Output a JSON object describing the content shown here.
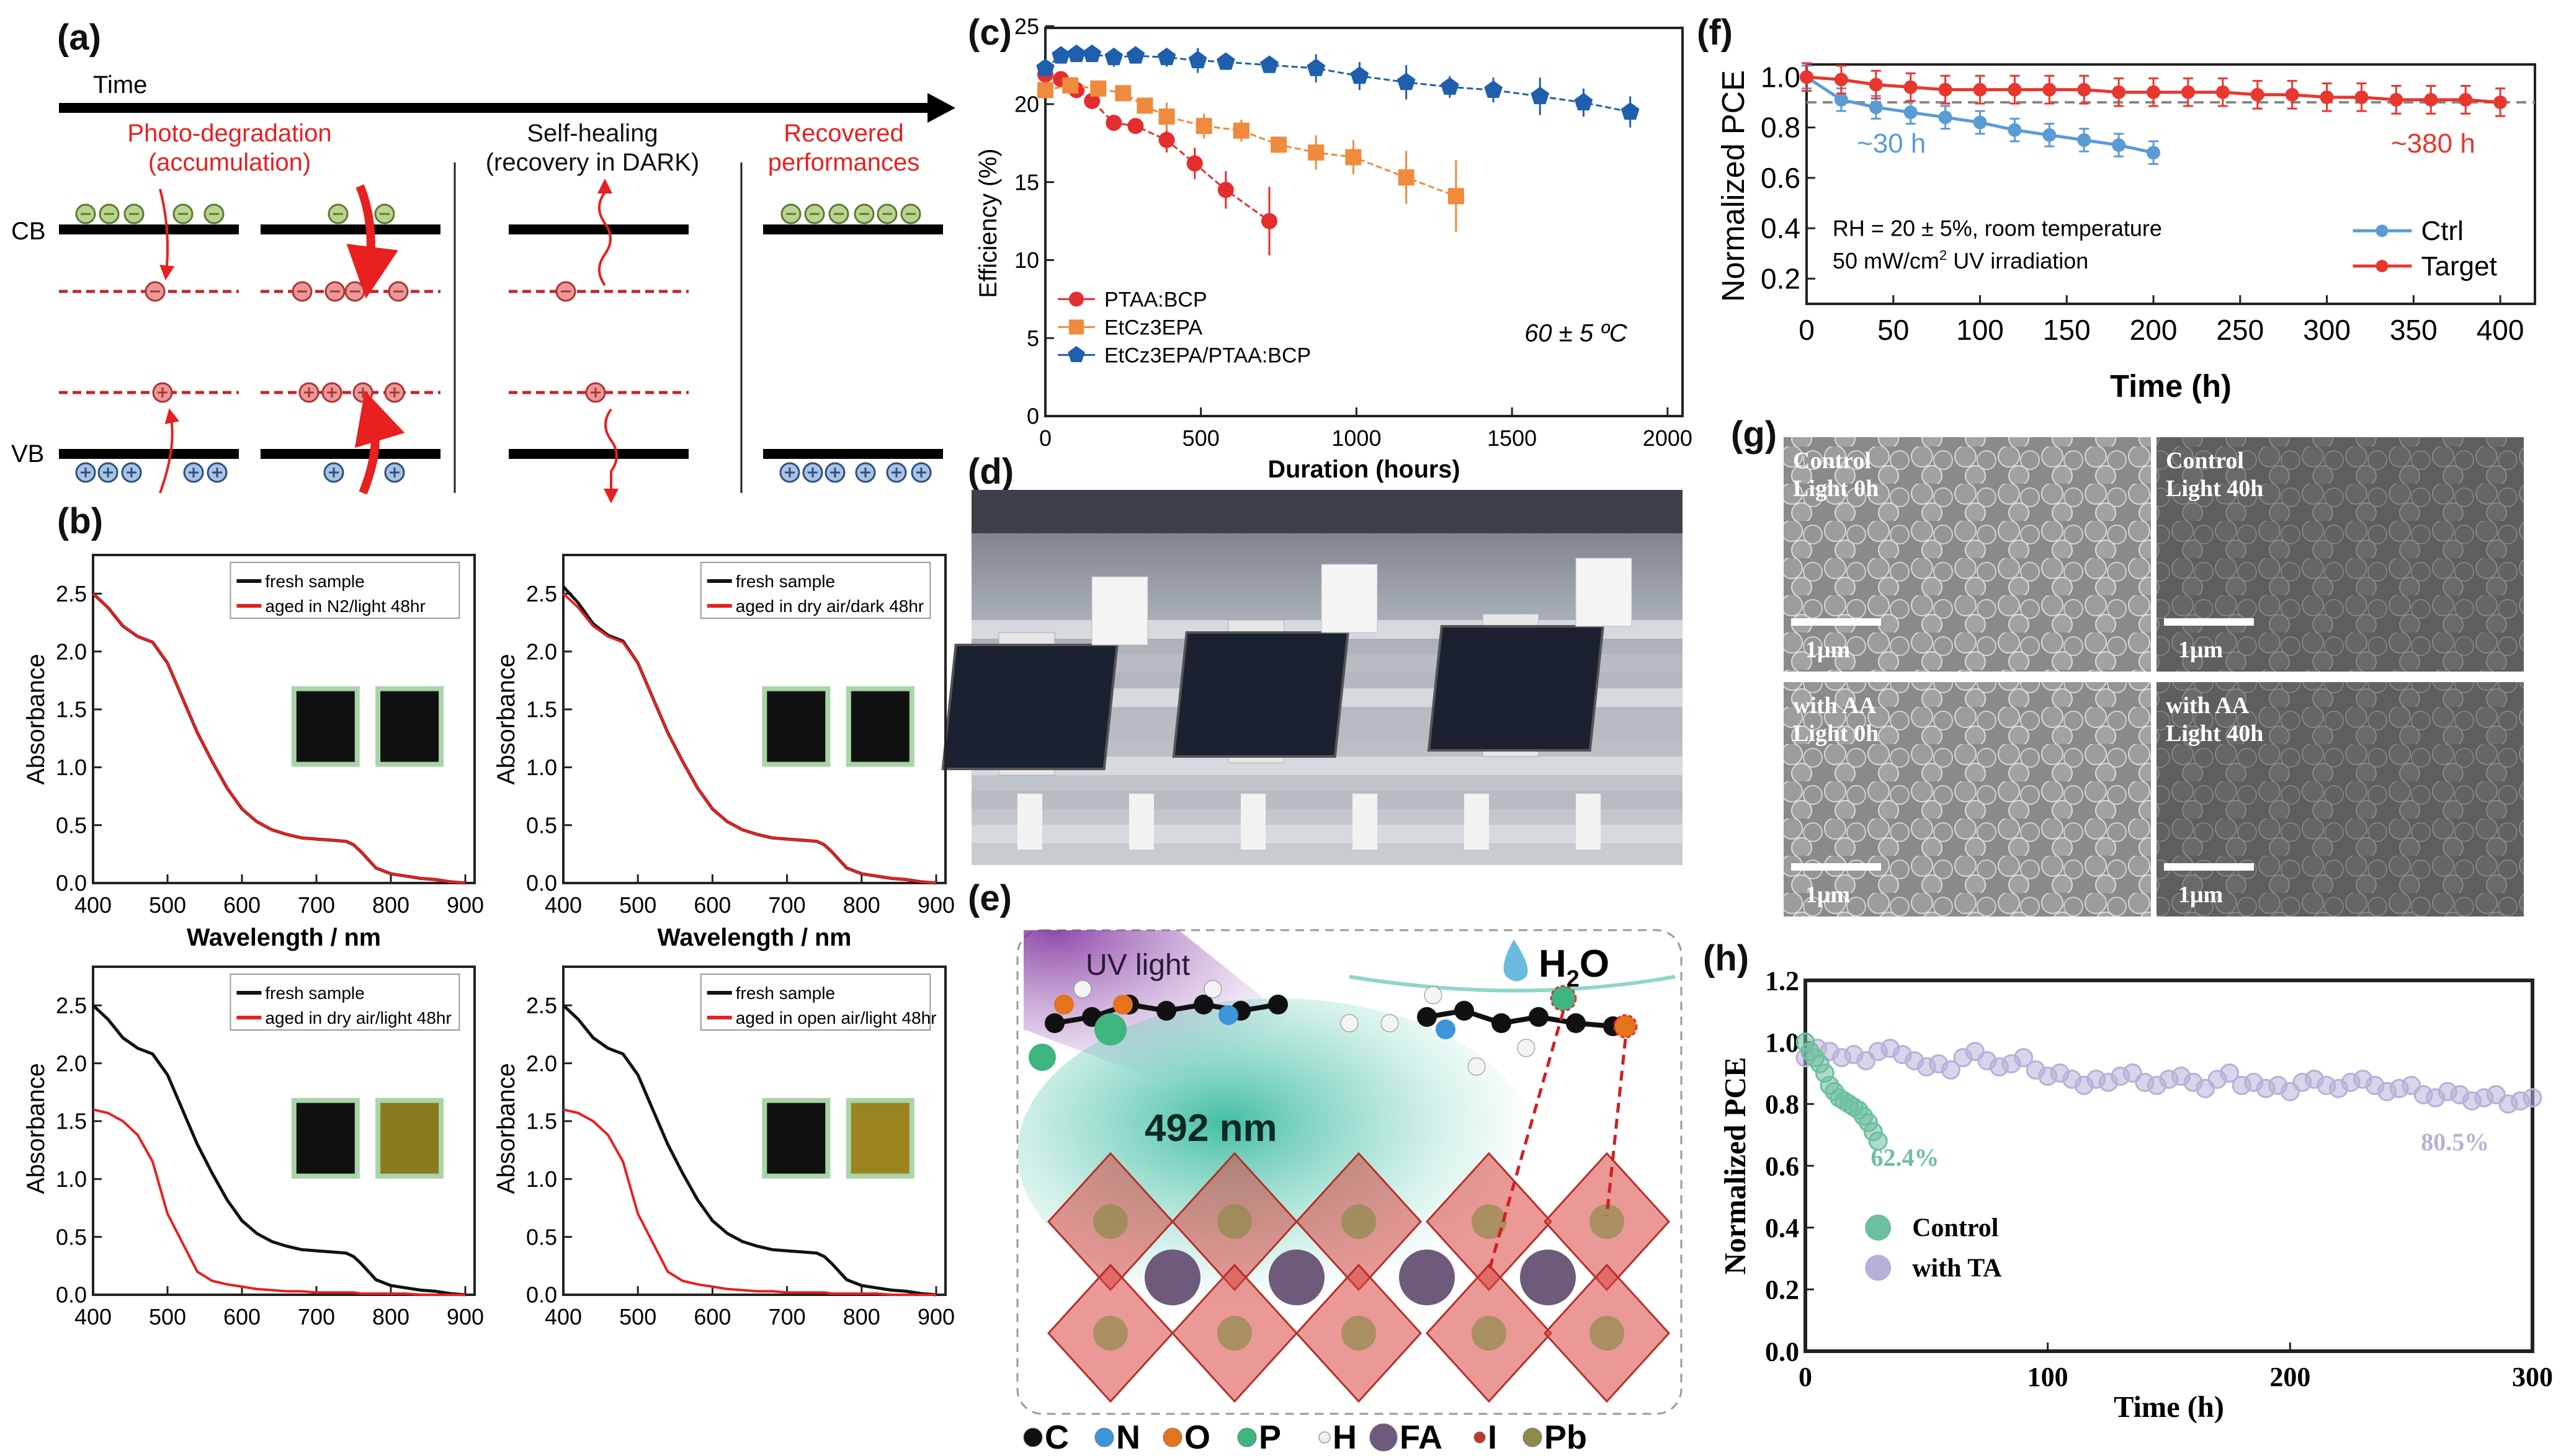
{
  "panel_labels": {
    "a": "(a)",
    "b": "(b)",
    "c": "(c)",
    "d": "(d)",
    "e": "(e)",
    "f": "(f)",
    "g": "(g)",
    "h": "(h)"
  },
  "panel_a": {
    "time_label": "Time",
    "photo_degradation": "Photo-degradation",
    "accumulation": "(accumulation)",
    "self_healing": "Self-healing",
    "recovery": "(recovery in DARK)",
    "recovered": "Recovered",
    "performances": "performances",
    "cb": "CB",
    "vb": "VB",
    "colors": {
      "red": "#e8201f",
      "electron": "#b7d58f",
      "hole": "#a9c3e3",
      "trap": "#e79a9a"
    }
  },
  "panel_e": {
    "uv_light": "UV light",
    "h2o_main": "H",
    "h2o_sub": "2",
    "h2o_end": "O",
    "wavelength": "492 nm",
    "legend": [
      {
        "label": "C",
        "color": "#111111"
      },
      {
        "label": "N",
        "color": "#3b95d8"
      },
      {
        "label": "O",
        "color": "#e5731c"
      },
      {
        "label": "P",
        "color": "#3fb57f"
      },
      {
        "label": "H",
        "color": "#eeeeee"
      },
      {
        "label": "FA",
        "color": "#6e5a7a"
      },
      {
        "label": "I",
        "color": "#c2362f"
      },
      {
        "label": "Pb",
        "color": "#8d8a4a"
      }
    ]
  },
  "panel_g": {
    "images": [
      {
        "line1": "Control",
        "line2": "Light 0h",
        "scale": "1μm"
      },
      {
        "line1": "Control",
        "line2": "Light 40h",
        "scale": "1μm"
      },
      {
        "line1": "with AA",
        "line2": "Light 0h",
        "scale": "1μm"
      },
      {
        "line1": "with AA",
        "line2": "Light 40h",
        "scale": "1μm"
      }
    ]
  },
  "chart_data": [
    {
      "id": "b1",
      "panel": "b",
      "type": "line",
      "title": "",
      "xlabel": "Wavelength / nm",
      "ylabel": "Absorbance",
      "xlim": [
        400,
        900
      ],
      "ylim": [
        0,
        2.7
      ],
      "xticks": [
        "400",
        "500",
        "600",
        "700",
        "800",
        "900"
      ],
      "yticks": [
        "0.0",
        "0.5",
        "1.0",
        "1.5",
        "2.0",
        "2.5"
      ],
      "legend_position": "top-right",
      "x": [
        400,
        420,
        440,
        460,
        480,
        500,
        520,
        540,
        560,
        580,
        600,
        620,
        640,
        660,
        680,
        700,
        720,
        740,
        750,
        760,
        770,
        780,
        800,
        820,
        840,
        860,
        880,
        900
      ],
      "series": [
        {
          "name": "fresh sample",
          "color": "#111111",
          "y": [
            2.5,
            2.38,
            2.22,
            2.13,
            2.08,
            1.9,
            1.6,
            1.3,
            1.05,
            0.82,
            0.64,
            0.53,
            0.46,
            0.42,
            0.39,
            0.38,
            0.37,
            0.36,
            0.33,
            0.27,
            0.2,
            0.13,
            0.08,
            0.06,
            0.04,
            0.03,
            0.01,
            0.0
          ]
        },
        {
          "name": "aged in N2/light 48hr",
          "color": "#e8201f",
          "y": [
            2.5,
            2.38,
            2.22,
            2.13,
            2.08,
            1.9,
            1.6,
            1.3,
            1.05,
            0.82,
            0.64,
            0.53,
            0.46,
            0.42,
            0.39,
            0.38,
            0.37,
            0.36,
            0.33,
            0.27,
            0.2,
            0.13,
            0.08,
            0.06,
            0.04,
            0.03,
            0.01,
            0.0
          ]
        }
      ],
      "inset_colors": [
        "#111111",
        "#111111"
      ]
    },
    {
      "id": "b2",
      "panel": "b",
      "type": "line",
      "title": "",
      "xlabel": "Wavelength / nm",
      "ylabel": "Absorbance",
      "xlim": [
        400,
        900
      ],
      "ylim": [
        0,
        2.7
      ],
      "xticks": [
        "400",
        "500",
        "600",
        "700",
        "800",
        "900"
      ],
      "yticks": [
        "0.0",
        "0.5",
        "1.0",
        "1.5",
        "2.0",
        "2.5"
      ],
      "legend_position": "top-right",
      "x": [
        400,
        420,
        440,
        460,
        480,
        500,
        520,
        540,
        560,
        580,
        600,
        620,
        640,
        660,
        680,
        700,
        720,
        740,
        750,
        760,
        770,
        780,
        800,
        820,
        840,
        860,
        880,
        900
      ],
      "series": [
        {
          "name": "fresh sample",
          "color": "#111111",
          "y": [
            2.56,
            2.42,
            2.24,
            2.14,
            2.09,
            1.9,
            1.6,
            1.3,
            1.05,
            0.82,
            0.64,
            0.53,
            0.46,
            0.42,
            0.39,
            0.38,
            0.37,
            0.36,
            0.33,
            0.27,
            0.2,
            0.13,
            0.08,
            0.06,
            0.04,
            0.03,
            0.01,
            0.0
          ]
        },
        {
          "name": "aged in dry air/dark 48hr",
          "color": "#e8201f",
          "y": [
            2.5,
            2.38,
            2.22,
            2.13,
            2.08,
            1.9,
            1.6,
            1.3,
            1.05,
            0.82,
            0.64,
            0.53,
            0.46,
            0.42,
            0.39,
            0.38,
            0.37,
            0.36,
            0.33,
            0.27,
            0.2,
            0.13,
            0.08,
            0.06,
            0.04,
            0.03,
            0.01,
            0.0
          ]
        }
      ],
      "inset_colors": [
        "#111111",
        "#111111"
      ]
    },
    {
      "id": "b3",
      "panel": "b",
      "type": "line",
      "title": "",
      "xlabel": "",
      "ylabel": "Absorbance",
      "xlim": [
        400,
        900
      ],
      "ylim": [
        0,
        2.7
      ],
      "xticks": [
        "400",
        "500",
        "600",
        "700",
        "800",
        "900"
      ],
      "yticks": [
        "0.0",
        "0.5",
        "1.0",
        "1.5",
        "2.0",
        "2.5"
      ],
      "legend_position": "top-right",
      "x": [
        400,
        420,
        440,
        460,
        480,
        500,
        520,
        540,
        560,
        580,
        600,
        620,
        640,
        660,
        680,
        700,
        720,
        740,
        750,
        760,
        770,
        780,
        800,
        820,
        840,
        860,
        880,
        900
      ],
      "series": [
        {
          "name": "fresh sample",
          "color": "#111111",
          "y": [
            2.5,
            2.38,
            2.22,
            2.13,
            2.08,
            1.9,
            1.6,
            1.3,
            1.05,
            0.82,
            0.64,
            0.53,
            0.46,
            0.42,
            0.39,
            0.38,
            0.37,
            0.36,
            0.33,
            0.27,
            0.2,
            0.13,
            0.08,
            0.06,
            0.04,
            0.03,
            0.01,
            0.0
          ]
        },
        {
          "name": "aged in dry air/light 48hr",
          "color": "#e8201f",
          "y": [
            1.6,
            1.57,
            1.5,
            1.38,
            1.15,
            0.7,
            0.45,
            0.2,
            0.12,
            0.09,
            0.07,
            0.05,
            0.04,
            0.03,
            0.03,
            0.02,
            0.02,
            0.02,
            0.02,
            0.01,
            0.01,
            0.01,
            0.01,
            0.01,
            0.0,
            0.0,
            0.0,
            0.0
          ]
        }
      ],
      "inset_colors": [
        "#111111",
        "#8a7a1e"
      ]
    },
    {
      "id": "b4",
      "panel": "b",
      "type": "line",
      "title": "",
      "xlabel": "",
      "ylabel": "Absorbance",
      "xlim": [
        400,
        900
      ],
      "ylim": [
        0,
        2.7
      ],
      "xticks": [
        "400",
        "500",
        "600",
        "700",
        "800",
        "900"
      ],
      "yticks": [
        "0.0",
        "0.5",
        "1.0",
        "1.5",
        "2.0",
        "2.5"
      ],
      "legend_position": "top-right",
      "x": [
        400,
        420,
        440,
        460,
        480,
        500,
        520,
        540,
        560,
        580,
        600,
        620,
        640,
        660,
        680,
        700,
        720,
        740,
        750,
        760,
        770,
        780,
        800,
        820,
        840,
        860,
        880,
        900
      ],
      "series": [
        {
          "name": "fresh sample",
          "color": "#111111",
          "y": [
            2.5,
            2.38,
            2.22,
            2.13,
            2.08,
            1.9,
            1.6,
            1.3,
            1.05,
            0.82,
            0.64,
            0.53,
            0.46,
            0.42,
            0.39,
            0.38,
            0.37,
            0.36,
            0.33,
            0.27,
            0.2,
            0.13,
            0.08,
            0.06,
            0.04,
            0.03,
            0.01,
            0.0
          ]
        },
        {
          "name": "aged in open air/light 48hr",
          "color": "#e8201f",
          "y": [
            1.6,
            1.57,
            1.5,
            1.38,
            1.15,
            0.7,
            0.45,
            0.2,
            0.12,
            0.09,
            0.07,
            0.05,
            0.04,
            0.03,
            0.03,
            0.02,
            0.02,
            0.02,
            0.02,
            0.01,
            0.01,
            0.01,
            0.01,
            0.01,
            0.0,
            0.0,
            0.0,
            0.0
          ]
        }
      ],
      "inset_colors": [
        "#111111",
        "#9a8420"
      ]
    },
    {
      "id": "c",
      "panel": "c",
      "type": "line",
      "title": "",
      "xlabel": "Duration (hours)",
      "ylabel": "Efficiency (%)",
      "xlim": [
        0,
        2100
      ],
      "ylim": [
        0,
        26
      ],
      "xticks": [
        "0",
        "500",
        "1000",
        "1500",
        "2000"
      ],
      "yticks": [
        "0",
        "5",
        "10",
        "15",
        "20",
        "25"
      ],
      "annotation": "60 ± 5 ºC",
      "legend_position": "bottom-left",
      "series": [
        {
          "name": "PTAA:BCP",
          "color": "#e52d2d",
          "marker": "circle",
          "x": [
            0,
            50,
            100,
            150,
            220,
            290,
            390,
            480,
            580,
            720
          ],
          "y": [
            21.9,
            21.6,
            20.9,
            20.2,
            18.8,
            18.6,
            17.7,
            16.2,
            14.5,
            12.5
          ],
          "err": [
            0.3,
            0.3,
            0.3,
            0.3,
            0.3,
            0.3,
            0.8,
            1.0,
            1.2,
            2.2
          ]
        },
        {
          "name": "EtCz3EPA",
          "color": "#f08a3c",
          "marker": "square",
          "x": [
            0,
            80,
            170,
            250,
            320,
            390,
            510,
            630,
            750,
            870,
            990,
            1160,
            1320
          ],
          "y": [
            20.9,
            21.2,
            21.0,
            20.7,
            19.9,
            19.2,
            18.6,
            18.3,
            17.4,
            16.9,
            16.6,
            15.3,
            14.1
          ],
          "err": [
            0.3,
            0.3,
            0.3,
            0.3,
            0.4,
            0.9,
            0.8,
            0.7,
            0.5,
            1.1,
            1.1,
            1.7,
            2.3
          ]
        },
        {
          "name": "EtCz3EPA/PTAA:BCP",
          "color": "#1f5fad",
          "marker": "pentagon",
          "x": [
            0,
            50,
            100,
            150,
            220,
            290,
            390,
            490,
            580,
            720,
            870,
            1010,
            1160,
            1300,
            1440,
            1590,
            1730,
            1880
          ],
          "y": [
            22.3,
            23.1,
            23.2,
            23.2,
            23.0,
            23.1,
            23.0,
            22.8,
            22.7,
            22.5,
            22.3,
            21.8,
            21.4,
            21.1,
            20.9,
            20.5,
            20.1,
            19.5
          ],
          "err": [
            0.3,
            0.3,
            0.3,
            0.3,
            0.6,
            0.3,
            0.6,
            0.8,
            0.5,
            0.4,
            0.9,
            0.9,
            1.1,
            0.7,
            0.8,
            1.2,
            0.9,
            1.0
          ]
        }
      ]
    },
    {
      "id": "f",
      "panel": "f",
      "type": "line",
      "title": "",
      "xlabel": "Time (h)",
      "ylabel": "Normalized PCE",
      "xlim": [
        0,
        420
      ],
      "ylim": [
        0.1,
        1.05
      ],
      "xticks": [
        "0",
        "50",
        "100",
        "150",
        "200",
        "250",
        "300",
        "350",
        "400"
      ],
      "yticks": [
        "0.2",
        "0.4",
        "0.6",
        "0.8",
        "1.0"
      ],
      "reference_line": 0.9,
      "annotations": {
        "ctrl": "~30 h",
        "target": "~380 h",
        "cond1": "RH = 20 ± 5%, room temperature",
        "cond2_main": "50 mW/cm",
        "cond2_sup": "2",
        "cond2_end": " UV irradiation"
      },
      "legend_position": "bottom-right",
      "series": [
        {
          "name": "Ctrl",
          "color": "#5b9bd5",
          "x": [
            0,
            20,
            40,
            60,
            80,
            100,
            120,
            140,
            160,
            180,
            200
          ],
          "y": [
            1.0,
            0.91,
            0.88,
            0.86,
            0.84,
            0.82,
            0.79,
            0.77,
            0.75,
            0.73,
            0.7
          ],
          "err": 0.045
        },
        {
          "name": "Target",
          "color": "#e8372f",
          "x": [
            0,
            20,
            40,
            60,
            80,
            100,
            120,
            140,
            160,
            180,
            200,
            220,
            240,
            260,
            280,
            300,
            320,
            340,
            360,
            380,
            400
          ],
          "y": [
            1.0,
            0.99,
            0.97,
            0.96,
            0.95,
            0.95,
            0.95,
            0.95,
            0.95,
            0.94,
            0.94,
            0.94,
            0.94,
            0.93,
            0.93,
            0.92,
            0.92,
            0.91,
            0.91,
            0.91,
            0.9
          ],
          "err": 0.055
        }
      ]
    },
    {
      "id": "h",
      "panel": "h",
      "type": "scatter",
      "title": "",
      "xlabel": "Time (h)",
      "ylabel": "Normalized PCE",
      "xlim": [
        0,
        300
      ],
      "ylim": [
        0,
        1.2
      ],
      "xticks": [
        "0",
        "100",
        "200",
        "300"
      ],
      "yticks": [
        "0.0",
        "0.2",
        "0.4",
        "0.6",
        "0.8",
        "1.0",
        "1.2"
      ],
      "annotations": {
        "control": "62.4%",
        "ta": "80.5%"
      },
      "legend_position": "bottom-left",
      "series": [
        {
          "name": "Control",
          "color": "#6dbf9e",
          "x_start": 0,
          "x_step": 2,
          "y": [
            1.0,
            0.97,
            0.95,
            0.93,
            0.9,
            0.86,
            0.84,
            0.82,
            0.81,
            0.8,
            0.79,
            0.78,
            0.76,
            0.74,
            0.71,
            0.68
          ]
        },
        {
          "name": "with TA",
          "color": "#b8b0d8",
          "x_start": 0,
          "x_step": 5,
          "y": [
            0.95,
            0.98,
            0.97,
            0.95,
            0.96,
            0.94,
            0.97,
            0.98,
            0.96,
            0.94,
            0.92,
            0.93,
            0.91,
            0.95,
            0.97,
            0.94,
            0.92,
            0.93,
            0.95,
            0.91,
            0.89,
            0.9,
            0.88,
            0.86,
            0.88,
            0.87,
            0.89,
            0.9,
            0.87,
            0.86,
            0.88,
            0.89,
            0.87,
            0.85,
            0.88,
            0.9,
            0.86,
            0.87,
            0.85,
            0.86,
            0.84,
            0.87,
            0.88,
            0.86,
            0.85,
            0.87,
            0.88,
            0.86,
            0.84,
            0.85,
            0.86,
            0.83,
            0.82,
            0.84,
            0.83,
            0.81,
            0.82,
            0.83,
            0.8,
            0.81,
            0.82
          ]
        }
      ]
    }
  ]
}
